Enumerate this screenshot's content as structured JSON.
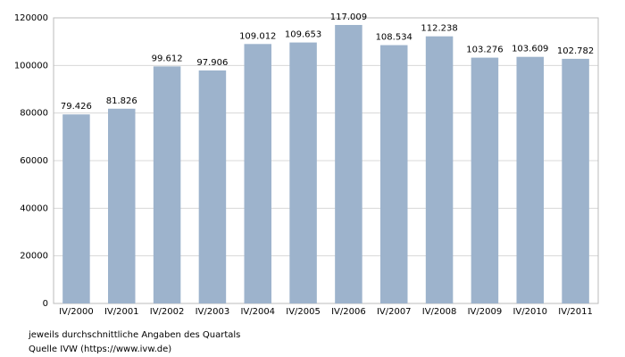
{
  "chart_data": {
    "type": "bar",
    "categories": [
      "IV/2000",
      "IV/2001",
      "IV/2002",
      "IV/2003",
      "IV/2004",
      "IV/2005",
      "IV/2006",
      "IV/2007",
      "IV/2008",
      "IV/2009",
      "IV/2010",
      "IV/2011"
    ],
    "values": [
      79426,
      81826,
      99612,
      97906,
      109012,
      109653,
      117009,
      108534,
      112238,
      103276,
      103609,
      102782
    ],
    "value_labels": [
      "79.426",
      "81.826",
      "99.612",
      "97.906",
      "109.012",
      "109.653",
      "117.009",
      "108.534",
      "112.238",
      "103.276",
      "103.609",
      "102.782"
    ],
    "color": "#9db3cc",
    "ylim": [
      0,
      120000
    ],
    "yticks": [
      0,
      20000,
      40000,
      60000,
      80000,
      100000,
      120000
    ],
    "grid": true,
    "notes": [
      "jeweils durchschnittliche Angaben des Quartals",
      "Quelle IVW (https://www.ivw.de)"
    ]
  }
}
